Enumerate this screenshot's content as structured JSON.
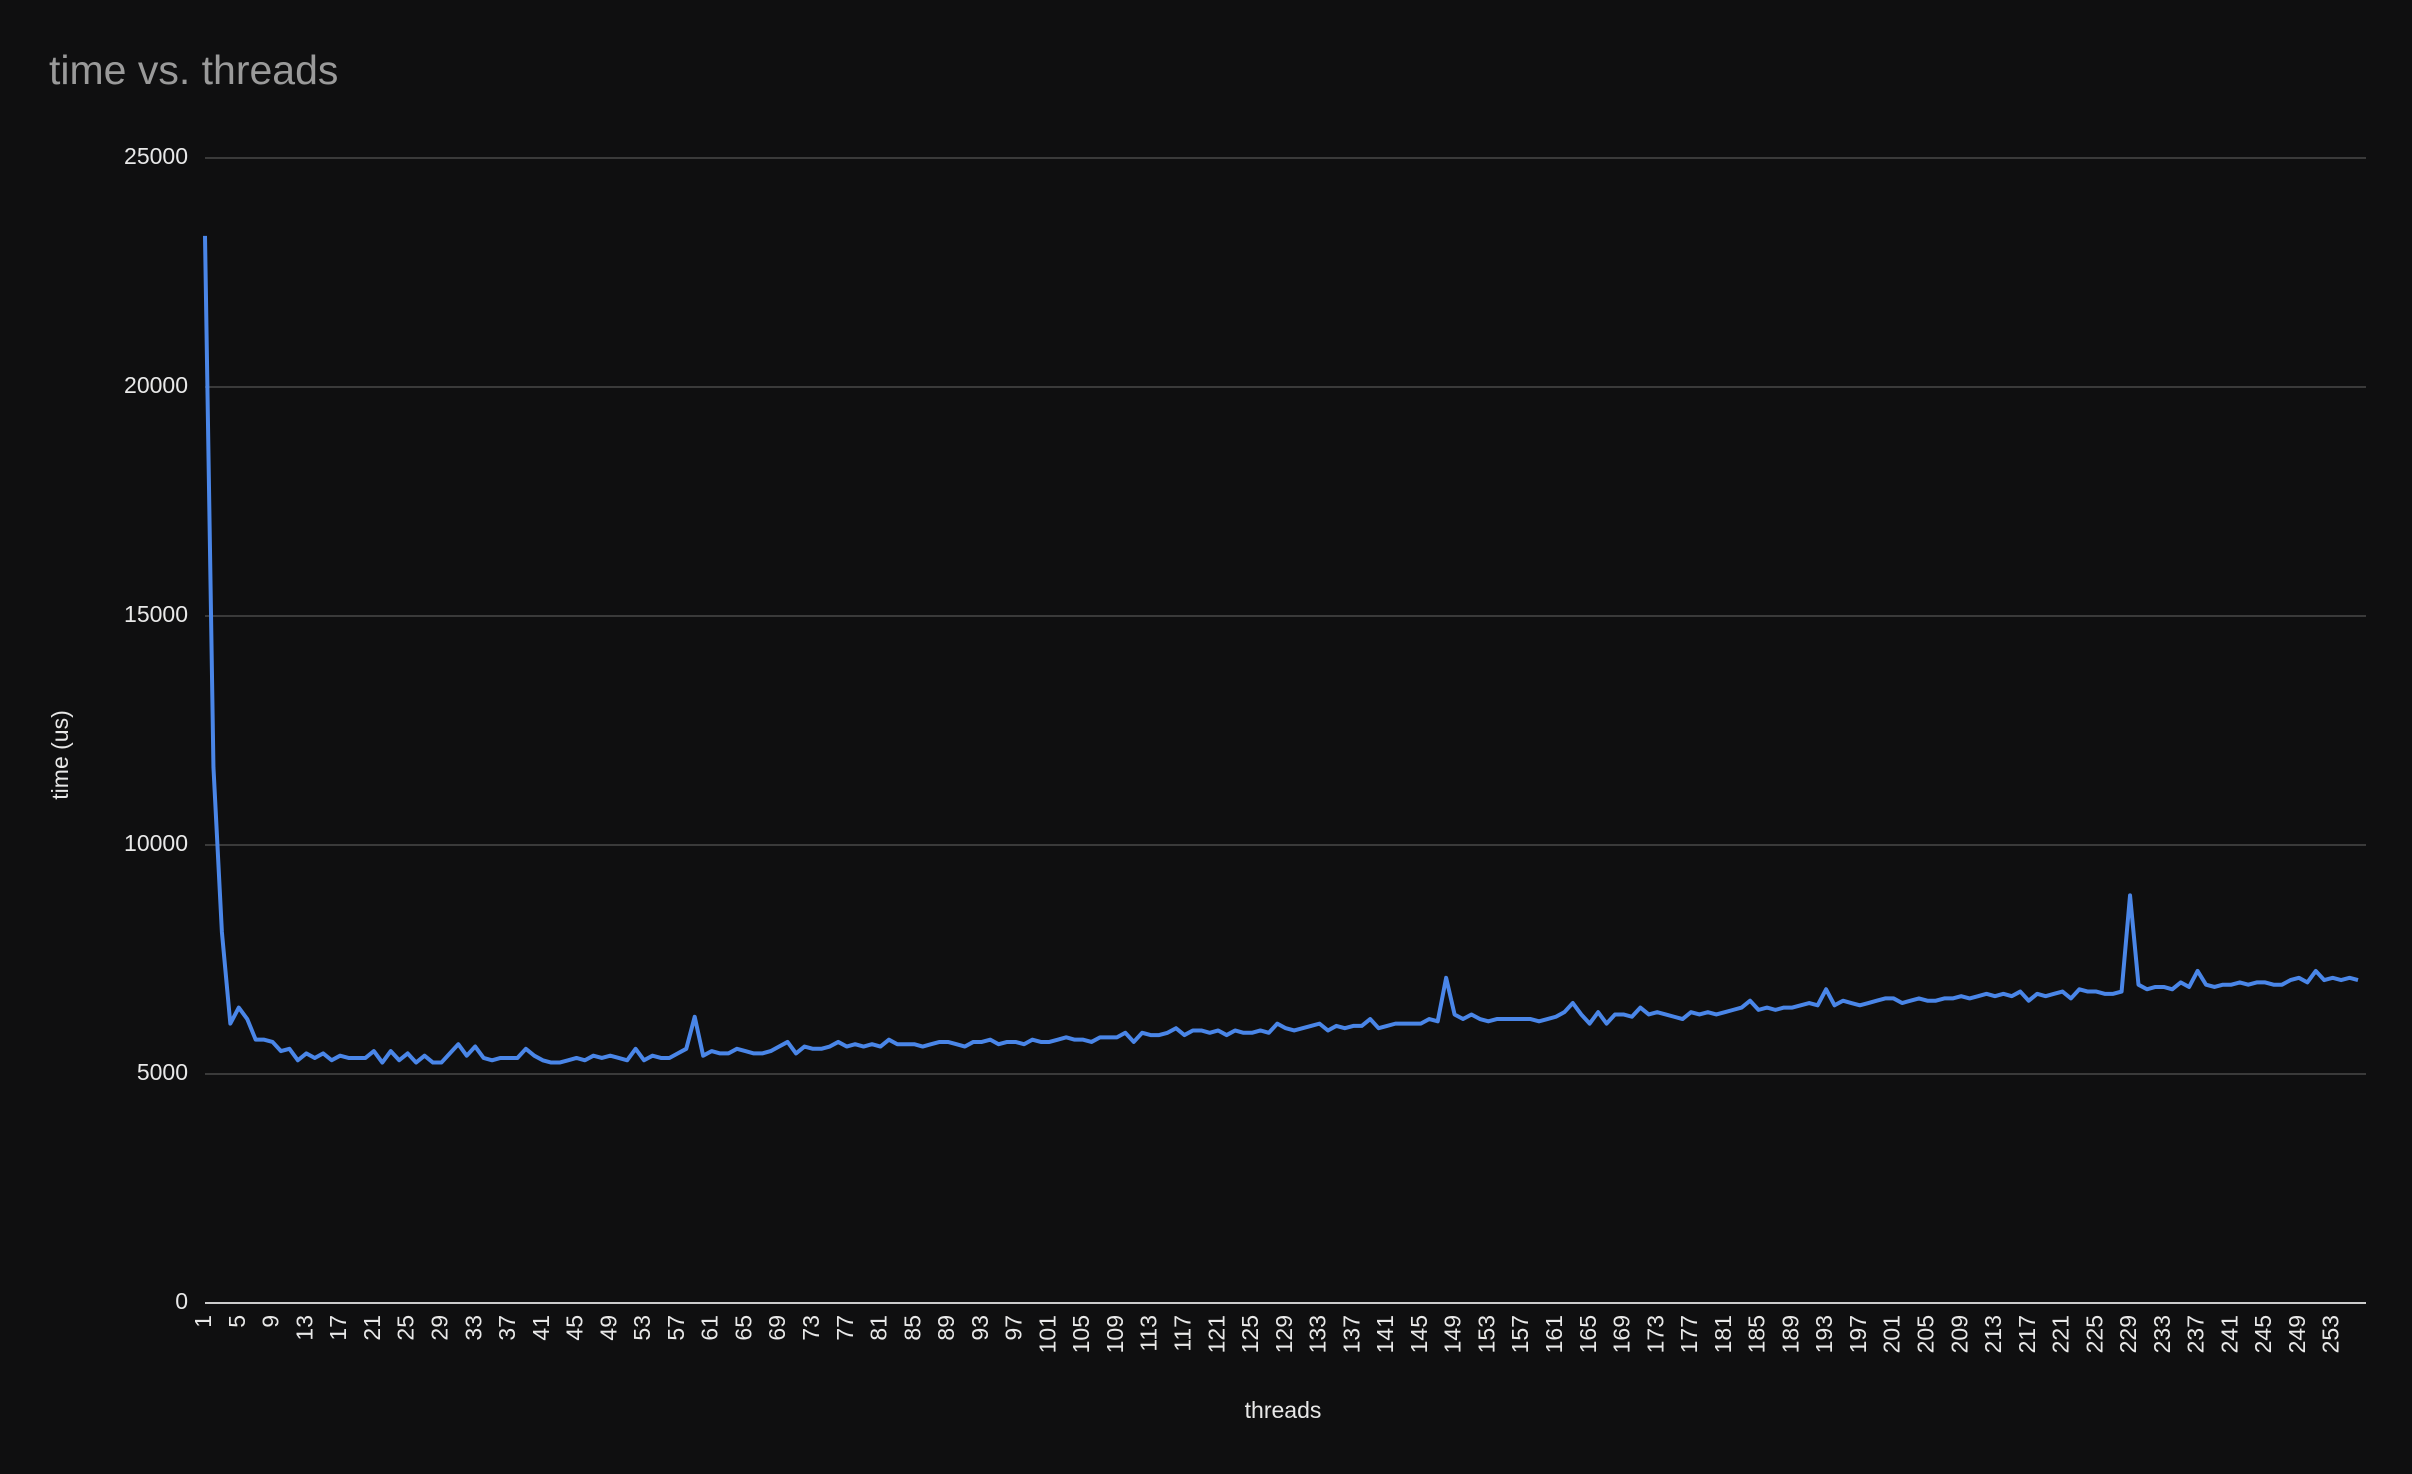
{
  "chart_data": {
    "type": "line",
    "title": "time vs. threads",
    "x_label": "threads",
    "y_label": "time (us)",
    "color": "#4a86e8",
    "grid": true,
    "x": [
      1,
      2,
      3,
      4,
      5,
      6,
      7,
      8,
      9,
      10,
      11,
      12,
      13,
      14,
      15,
      16,
      17,
      18,
      19,
      20,
      21,
      22,
      23,
      24,
      25,
      26,
      27,
      28,
      29,
      30,
      31,
      32,
      33,
      34,
      35,
      36,
      37,
      38,
      39,
      40,
      41,
      42,
      43,
      44,
      45,
      46,
      47,
      48,
      49,
      50,
      51,
      52,
      53,
      54,
      55,
      56,
      57,
      58,
      59,
      60,
      61,
      62,
      63,
      64,
      65,
      66,
      67,
      68,
      69,
      70,
      71,
      72,
      73,
      74,
      75,
      76,
      77,
      78,
      79,
      80,
      81,
      82,
      83,
      84,
      85,
      86,
      87,
      88,
      89,
      90,
      91,
      92,
      93,
      94,
      95,
      96,
      97,
      98,
      99,
      100,
      101,
      102,
      103,
      104,
      105,
      106,
      107,
      108,
      109,
      110,
      111,
      112,
      113,
      114,
      115,
      116,
      117,
      118,
      119,
      120,
      121,
      122,
      123,
      124,
      125,
      126,
      127,
      128,
      129,
      130,
      131,
      132,
      133,
      134,
      135,
      136,
      137,
      138,
      139,
      140,
      141,
      142,
      143,
      144,
      145,
      146,
      147,
      148,
      149,
      150,
      151,
      152,
      153,
      154,
      155,
      156,
      157,
      158,
      159,
      160,
      161,
      162,
      163,
      164,
      165,
      166,
      167,
      168,
      169,
      170,
      171,
      172,
      173,
      174,
      175,
      176,
      177,
      178,
      179,
      180,
      181,
      182,
      183,
      184,
      185,
      186,
      187,
      188,
      189,
      190,
      191,
      192,
      193,
      194,
      195,
      196,
      197,
      198,
      199,
      200,
      201,
      202,
      203,
      204,
      205,
      206,
      207,
      208,
      209,
      210,
      211,
      212,
      213,
      214,
      215,
      216,
      217,
      218,
      219,
      220,
      221,
      222,
      223,
      224,
      225,
      226,
      227,
      228,
      229,
      230,
      231,
      232,
      233,
      234,
      235,
      236,
      237,
      238,
      239,
      240,
      241,
      242,
      243,
      244,
      245,
      246,
      247,
      248,
      249,
      250,
      251,
      252,
      253,
      254,
      255,
      256
    ],
    "values": [
      23300,
      11700,
      8100,
      6100,
      6450,
      6200,
      5750,
      5750,
      5700,
      5500,
      5550,
      5300,
      5450,
      5350,
      5450,
      5300,
      5400,
      5350,
      5350,
      5350,
      5500,
      5250,
      5500,
      5300,
      5450,
      5250,
      5400,
      5250,
      5250,
      5450,
      5650,
      5400,
      5600,
      5350,
      5300,
      5350,
      5350,
      5350,
      5550,
      5400,
      5300,
      5250,
      5250,
      5300,
      5350,
      5300,
      5400,
      5350,
      5400,
      5350,
      5300,
      5550,
      5300,
      5400,
      5350,
      5350,
      5450,
      5550,
      6250,
      5400,
      5500,
      5450,
      5450,
      5550,
      5500,
      5450,
      5450,
      5500,
      5600,
      5700,
      5450,
      5600,
      5550,
      5550,
      5600,
      5700,
      5600,
      5650,
      5600,
      5650,
      5600,
      5750,
      5650,
      5650,
      5650,
      5600,
      5650,
      5700,
      5700,
      5650,
      5600,
      5700,
      5700,
      5750,
      5650,
      5700,
      5700,
      5650,
      5750,
      5700,
      5700,
      5750,
      5800,
      5750,
      5750,
      5700,
      5800,
      5800,
      5800,
      5900,
      5700,
      5900,
      5850,
      5850,
      5900,
      6000,
      5850,
      5950,
      5950,
      5900,
      5950,
      5850,
      5950,
      5900,
      5900,
      5950,
      5900,
      6100,
      6000,
      5950,
      6000,
      6050,
      6100,
      5950,
      6050,
      6000,
      6050,
      6050,
      6200,
      6000,
      6050,
      6100,
      6100,
      6100,
      6100,
      6200,
      6150,
      7100,
      6300,
      6200,
      6300,
      6200,
      6150,
      6200,
      6200,
      6200,
      6200,
      6200,
      6150,
      6200,
      6250,
      6350,
      6550,
      6300,
      6100,
      6350,
      6100,
      6300,
      6300,
      6250,
      6450,
      6300,
      6350,
      6300,
      6250,
      6200,
      6350,
      6300,
      6350,
      6300,
      6350,
      6400,
      6450,
      6600,
      6400,
      6450,
      6400,
      6450,
      6450,
      6500,
      6550,
      6500,
      6850,
      6500,
      6600,
      6550,
      6500,
      6550,
      6600,
      6650,
      6650,
      6550,
      6600,
      6650,
      6600,
      6600,
      6650,
      6650,
      6700,
      6650,
      6700,
      6750,
      6700,
      6750,
      6700,
      6800,
      6600,
      6750,
      6700,
      6750,
      6800,
      6650,
      6850,
      6800,
      6800,
      6750,
      6750,
      6800,
      8900,
      6950,
      6850,
      6900,
      6900,
      6850,
      7000,
      6900,
      7250,
      6950,
      6900,
      6950,
      6950,
      7000,
      6950,
      7000,
      7000,
      6950,
      6950,
      7050,
      7100,
      7000,
      7250,
      7050,
      7100,
      7050,
      7100,
      7050
    ],
    "xlim": [
      1,
      256
    ],
    "xticks": [
      1,
      5,
      9,
      13,
      17,
      21,
      25,
      29,
      33,
      37,
      41,
      45,
      49,
      53,
      57,
      61,
      65,
      69,
      73,
      77,
      81,
      85,
      89,
      93,
      97,
      101,
      105,
      109,
      113,
      117,
      121,
      125,
      129,
      133,
      137,
      141,
      145,
      149,
      153,
      157,
      161,
      165,
      169,
      173,
      177,
      181,
      185,
      189,
      193,
      197,
      201,
      205,
      209,
      213,
      217,
      221,
      225,
      229,
      233,
      237,
      241,
      245,
      249,
      253
    ],
    "ylim": [
      0,
      25000
    ],
    "yticks": [
      0,
      5000,
      10000,
      15000,
      20000,
      25000
    ]
  }
}
